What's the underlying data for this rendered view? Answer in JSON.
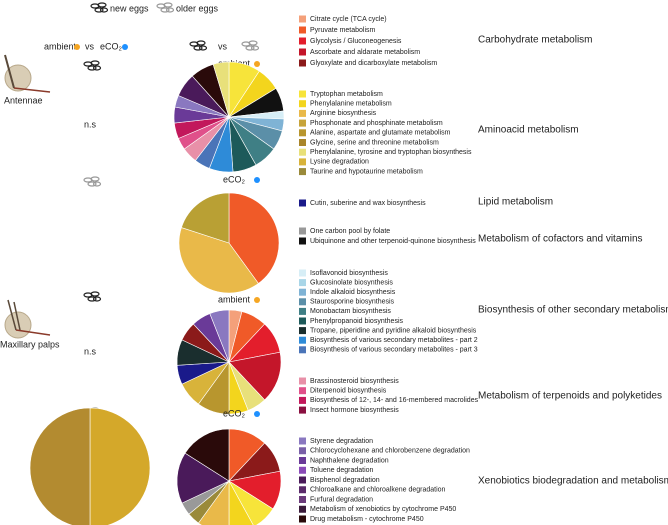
{
  "header": {
    "new_eggs": "new eggs",
    "older_eggs": "older eggs"
  },
  "comparison": {
    "ambient": "ambient",
    "vs": "vs",
    "eco2": "eCO₂",
    "ambient_color": "#f5a623",
    "eco2_color": "#1e90ff"
  },
  "middle_vs": "vs",
  "tissues": [
    "Antennae",
    "Maxillary palps"
  ],
  "significance": [
    "n.s",
    "n.s"
  ],
  "pathway_groups": [
    {
      "name": "Carbohydrate metabolism",
      "items": [
        {
          "name": "Citrate cycle (TCA cycle)",
          "color": "#f4a07a"
        },
        {
          "name": "Pyruvate metabolism",
          "color": "#f05a28"
        },
        {
          "name": "Glycolysis / Gluconeogenesis",
          "color": "#e31e2c"
        },
        {
          "name": "Ascorbate and aldarate metabolism",
          "color": "#c4162a"
        },
        {
          "name": "Glyoxylate and dicarboxylate metabolism",
          "color": "#8b1a1a"
        }
      ]
    },
    {
      "name": "Aminoacid metabolism",
      "items": [
        {
          "name": "Tryptophan metabolism",
          "color": "#f7e43a"
        },
        {
          "name": "Phenylalanine metabolism",
          "color": "#f3d51d"
        },
        {
          "name": "Arginine biosynthesis",
          "color": "#e9b949"
        },
        {
          "name": "Phosphonate and phosphinate metabolism",
          "color": "#c7a43a"
        },
        {
          "name": "Alanine, aspartate and glutamate metabolism",
          "color": "#b8962e"
        },
        {
          "name": "Glycine, serine and threonine metabolism",
          "color": "#a9852a"
        },
        {
          "name": "Phenylalanine, tyrosine and tryptophan biosynthesis",
          "color": "#e8e07a"
        },
        {
          "name": "Lysine degradation",
          "color": "#d8b33a"
        },
        {
          "name": "Taurine and hypotaurine metabolism",
          "color": "#9a8a3a"
        }
      ]
    },
    {
      "name": "Lipid metabolism",
      "items": [
        {
          "name": "Cutin, suberine and wax biosynthesis",
          "color": "#1a1a8a"
        }
      ]
    },
    {
      "name": "Metabolism of cofactors and vitamins",
      "items": [
        {
          "name": "One carbon pool by folate",
          "color": "#999999"
        },
        {
          "name": "Ubiquinone and other terpenoid-quinone biosynthesis",
          "color": "#111111"
        }
      ]
    },
    {
      "name": "Biosynthesis of other secondary metabolism",
      "items": [
        {
          "name": "Isoflavonoid biosynthesis",
          "color": "#d7eef6"
        },
        {
          "name": "Glucosinolate biosynthesis",
          "color": "#a9d6e8"
        },
        {
          "name": "Indole alkaloid biosynthesis",
          "color": "#7fb3d5"
        },
        {
          "name": "Staurosporine biosynthesis",
          "color": "#5b8fa8"
        },
        {
          "name": "Monobactam biosynthesis",
          "color": "#3f7f85"
        },
        {
          "name": "Phenylpropanoid biosynthesis",
          "color": "#1d5a5a"
        },
        {
          "name": "Tropane, piperidine and pyridine alkaloid biosynthesis",
          "color": "#1a2e2e"
        },
        {
          "name": "Biosynthesis of various secondary metabolites - part 2",
          "color": "#2e8bd8"
        },
        {
          "name": "Biosynthesis of various secondary metabolites - part 3",
          "color": "#4a74b8"
        }
      ]
    },
    {
      "name": "Metabolism of terpenoids and polyketides",
      "items": [
        {
          "name": "Brassinosteroid biosynthesis",
          "color": "#e890a8"
        },
        {
          "name": "Diterpenoid biosynthesis",
          "color": "#e0508a"
        },
        {
          "name": "Biosynthesis of 12-, 14- and 16-membered macrolides",
          "color": "#c2185b"
        },
        {
          "name": "Insect hormone biosynthesis",
          "color": "#8a1040"
        }
      ]
    },
    {
      "name": "Xenobiotics biodegradation and metabolism",
      "items": [
        {
          "name": "Styrene degradation",
          "color": "#8a78c0"
        },
        {
          "name": "Chlorocyclohexane and chlorobenzene degradation",
          "color": "#7a60a8"
        },
        {
          "name": "Naphthalene degradation",
          "color": "#6a3a98"
        },
        {
          "name": "Toluene degradation",
          "color": "#8a4ab8"
        },
        {
          "name": "Bisphenol degradation",
          "color": "#4a1a5a"
        },
        {
          "name": "Chloroalkane and chloroalkene degradation",
          "color": "#5a2a6a"
        },
        {
          "name": "Furfural degradation",
          "color": "#6a3a7a"
        },
        {
          "name": "Metabolism of xenobiotics by cytochrome P450",
          "color": "#3a1a3a"
        },
        {
          "name": "Drug metabolism - cytochrome P450",
          "color": "#2a0a0a"
        }
      ]
    }
  ],
  "chart_data": [
    {
      "type": "pie",
      "title": "ambient",
      "title_color": "#f5a623",
      "values": [
        8,
        6,
        6,
        2,
        3,
        5,
        6,
        6,
        6,
        4,
        4,
        3,
        4,
        4,
        3,
        6,
        6,
        4
      ],
      "colors": [
        "#f7e43a",
        "#f3d51d",
        "#111111",
        "#d7eef6",
        "#7fb3d5",
        "#5b8fa8",
        "#3f7f85",
        "#1d5a5a",
        "#2e8bd8",
        "#4a74b8",
        "#e890a8",
        "#e0508a",
        "#c2185b",
        "#6a3a98",
        "#8a78c0",
        "#4a1a5a",
        "#2a0a0a",
        "#e8e07a"
      ]
    },
    {
      "type": "pie",
      "title": "eCO₂",
      "title_color": "#1e90ff",
      "values": [
        40,
        40,
        20
      ],
      "colors": [
        "#f05a28",
        "#e9b949",
        "#b9a034"
      ]
    },
    {
      "type": "pie",
      "title": "ambient",
      "title_color": "#f5a623",
      "values": [
        4,
        8,
        10,
        16,
        6,
        6,
        10,
        8,
        6,
        8,
        6,
        6,
        6
      ],
      "colors": [
        "#f4a07a",
        "#f05a28",
        "#e31e2c",
        "#c4162a",
        "#e8e07a",
        "#f3d51d",
        "#b8962e",
        "#d8b33a",
        "#1a1a8a",
        "#1a2e2e",
        "#8b1a1a",
        "#6a3a98",
        "#8a78c0"
      ]
    },
    {
      "type": "pie",
      "title": "eCO₂",
      "title_color": "#1e90ff",
      "values": [
        12,
        10,
        12,
        8,
        8,
        10,
        4,
        4,
        16,
        16
      ],
      "colors": [
        "#f05a28",
        "#8b1a1a",
        "#e31e2c",
        "#f7e43a",
        "#f3d51d",
        "#e9b949",
        "#9a8a3a",
        "#999999",
        "#4a1a5a",
        "#2a0a0a"
      ]
    },
    {
      "type": "pie",
      "values": [
        50,
        50
      ],
      "colors": [
        "#d4a82a",
        "#b38b30"
      ]
    }
  ]
}
